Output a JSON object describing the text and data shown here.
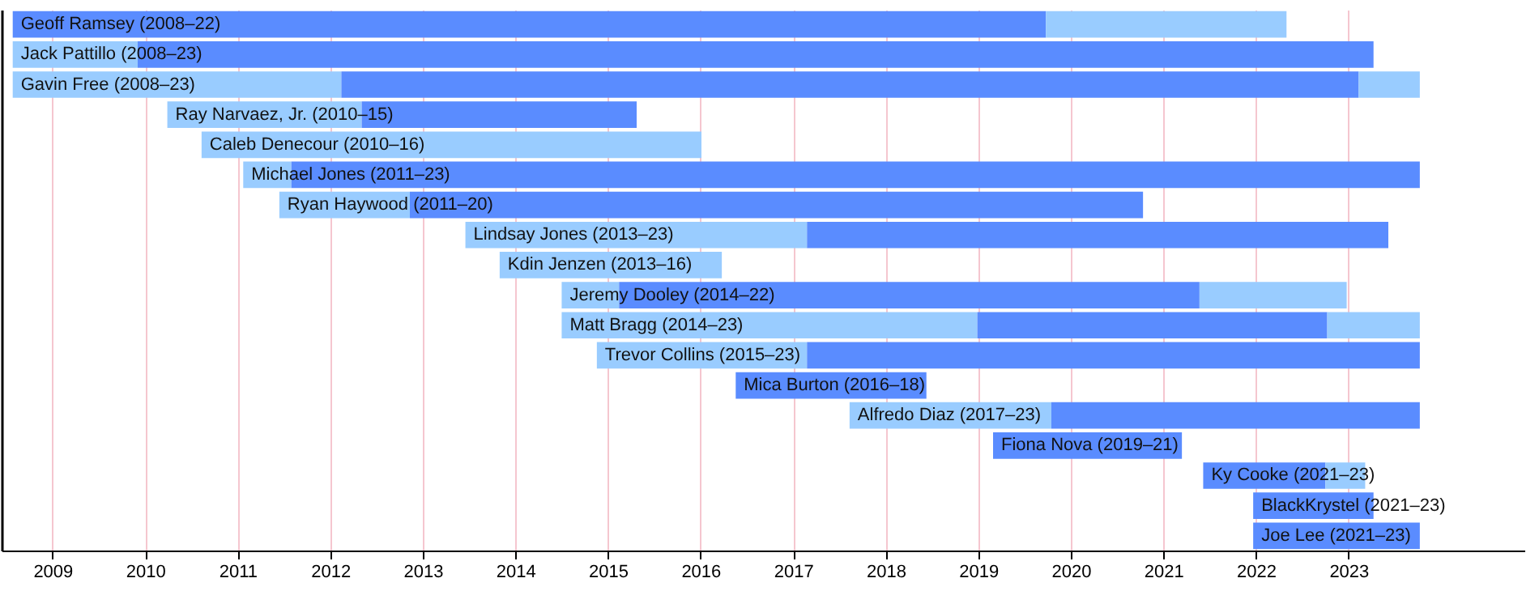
{
  "chart_data": {
    "type": "bar",
    "orientation": "horizontal",
    "categories": [
      "Geoff Ramsey (2008–22)",
      "Jack Pattillo (2008–23)",
      "Gavin Free (2008–23)",
      "Ray Narvaez, Jr. (2010–15)",
      "Caleb Denecour (2010–16)",
      "Michael Jones (2011–23)",
      "Ryan Haywood (2011–20)",
      "Lindsay Jones (2013–23)",
      "Kdin Jenzen (2013–16)",
      "Jeremy Dooley (2014–22)",
      "Matt Bragg (2014–23)",
      "Trevor Collins (2015–23)",
      "Mica Burton (2016–18)",
      "Alfredo Diaz (2017–23)",
      "Fiona Nova (2019–21)",
      "Ky Cooke (2021–23)",
      "BlackKrystel (2021–23)",
      "Joe Lee (2021–23)"
    ],
    "series": [
      {
        "color": "#99ccff",
        "base": [
          null,
          2008.57,
          2008.57,
          2010.24,
          2010.61,
          2011.06,
          2011.45,
          2013.46,
          2013.83,
          2014.5,
          2014.5,
          2014.88,
          null,
          2017.61,
          null,
          null,
          null,
          null
        ],
        "values": [
          null,
          1.35,
          3.55,
          2.1,
          5.4,
          0.52,
          1.41,
          3.69,
          2.4,
          0.62,
          4.49,
          2.27,
          null,
          2.18,
          null,
          null,
          null,
          null
        ]
      },
      {
        "color": "#5a8cff",
        "base": [
          2008.57,
          2009.92,
          2012.12,
          2012.34,
          null,
          2011.58,
          2012.86,
          2017.15,
          null,
          2015.12,
          2018.99,
          2017.15,
          2016.38,
          2019.79,
          2019.16,
          2021.43,
          2021.97,
          2021.97
        ],
        "values": [
          11.16,
          13.35,
          10.99,
          2.97,
          null,
          12.19,
          7.92,
          6.28,
          null,
          6.27,
          3.78,
          6.62,
          2.06,
          3.98,
          2.04,
          1.32,
          1.3,
          1.8
        ]
      },
      {
        "color": "#99ccff",
        "base": [
          2019.73,
          null,
          2023.11,
          null,
          null,
          null,
          null,
          null,
          null,
          2021.39,
          2022.77,
          null,
          null,
          null,
          null,
          2022.75,
          null,
          null
        ],
        "values": [
          2.6,
          null,
          0.66,
          null,
          null,
          null,
          null,
          null,
          null,
          1.59,
          1.0,
          null,
          null,
          null,
          null,
          0.43,
          null,
          null
        ]
      }
    ],
    "xlim": [
      2008.45,
      2024.9
    ],
    "xticks": [
      2009,
      2010,
      2011,
      2012,
      2013,
      2014,
      2015,
      2016,
      2017,
      2018,
      2019,
      2020,
      2021,
      2022,
      2023
    ],
    "grid": "x"
  }
}
